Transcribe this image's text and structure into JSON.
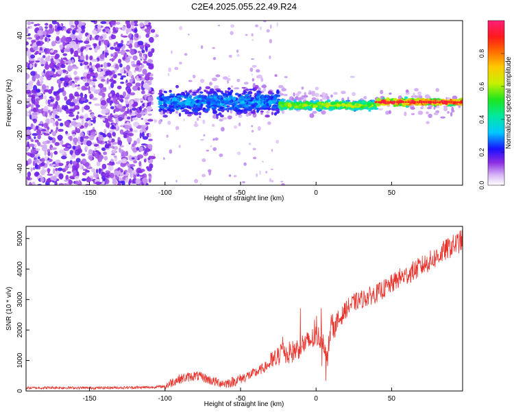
{
  "title": "C2E4.2025.055.22.49.R24",
  "chart_data": [
    {
      "type": "heatmap",
      "xlabel": "Height of straight line (km)",
      "ylabel": "Frequency (Hz)",
      "xlim": [
        -192,
        97
      ],
      "ylim": [
        -50,
        49
      ],
      "xticks": [
        -150,
        -100,
        -50,
        0,
        50
      ],
      "yticks": [
        -40,
        -20,
        0,
        20,
        40
      ],
      "colorbar": {
        "label": "Normalized spectral amplitude",
        "range": [
          0,
          1
        ],
        "ticks": [
          "0.0",
          "0.2",
          "0.4",
          "0.6",
          "0.8"
        ]
      },
      "regions": [
        {
          "x": [
            -192,
            -108
          ],
          "freq_spread": 50,
          "amplitude": 0.08,
          "description_level": "noise"
        },
        {
          "x": [
            -104,
            -24
          ],
          "freq_center": 0,
          "freq_spread": 6,
          "amplitude": 0.3
        },
        {
          "x": [
            -24,
            40
          ],
          "freq_center": -2,
          "freq_spread": 2,
          "amplitude": 0.6
        },
        {
          "x": [
            40,
            97
          ],
          "freq_center": 0,
          "freq_spread": 1.5,
          "amplitude": 0.92
        }
      ],
      "grid": false
    },
    {
      "type": "line",
      "xlabel": "Height of straight line (km)",
      "ylabel": "SNR (10 * v/v)",
      "xlim": [
        -192,
        97
      ],
      "ylim": [
        0,
        5400
      ],
      "xticks": [
        -150,
        -100,
        -50,
        0,
        50
      ],
      "yticks": [
        0,
        1000,
        2000,
        3000,
        4000,
        5000
      ],
      "color": "#e8322b",
      "series": [
        {
          "x": [
            -192,
            -170,
            -150,
            -130,
            -110,
            -100,
            -95,
            -90,
            -85,
            -80,
            -75,
            -70,
            -65,
            -60,
            -55,
            -50,
            -45,
            -40,
            -35,
            -30,
            -25,
            -22,
            -20,
            -15,
            -12,
            -10,
            -5,
            0,
            5,
            7,
            10,
            12,
            15,
            20,
            25,
            30,
            35,
            40,
            45,
            50,
            55,
            60,
            65,
            70,
            75,
            80,
            85,
            90,
            97
          ],
          "y": [
            100,
            110,
            100,
            110,
            120,
            150,
            300,
            400,
            450,
            500,
            450,
            350,
            280,
            250,
            300,
            400,
            500,
            600,
            750,
            900,
            1100,
            1500,
            1200,
            1300,
            1400,
            1500,
            1600,
            1800,
            1700,
            900,
            2200,
            2100,
            2300,
            2700,
            2900,
            3000,
            3100,
            3200,
            3350,
            3500,
            3700,
            3800,
            3950,
            4100,
            4250,
            4400,
            4600,
            4750,
            4950
          ]
        }
      ],
      "grid": false
    }
  ]
}
